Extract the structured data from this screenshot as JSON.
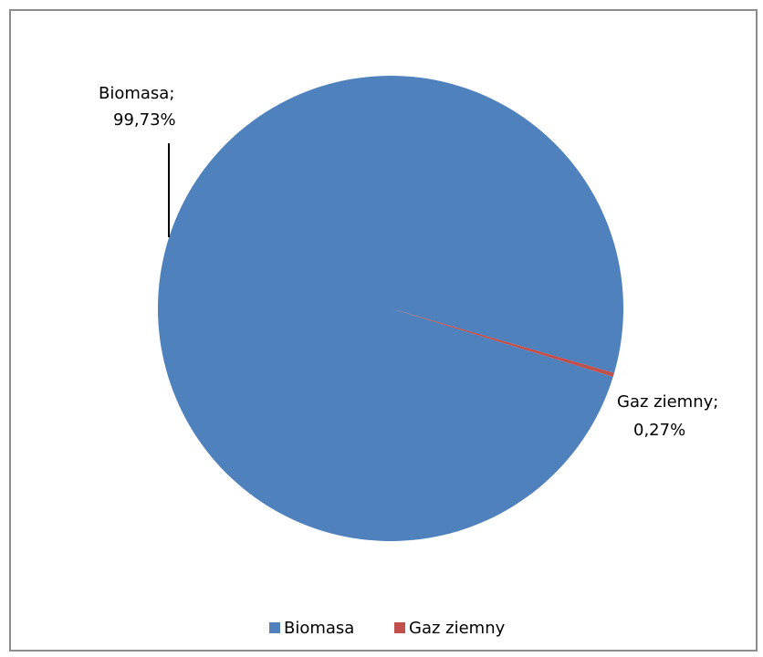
{
  "chart_data": {
    "type": "pie",
    "categories": [
      "Biomasa",
      "Gaz ziemny"
    ],
    "values": [
      99.73,
      0.27
    ],
    "colors": [
      "#4f81bd",
      "#c0504d"
    ],
    "data_labels": [
      {
        "name": "Biomasa;",
        "value": "99,73%"
      },
      {
        "name": "Gaz ziemny;",
        "value": "0,27%"
      }
    ],
    "legend": {
      "position": "bottom",
      "items": [
        {
          "label": "Biomasa",
          "color": "#4f81bd"
        },
        {
          "label": "Gaz ziemny",
          "color": "#c0504d"
        }
      ]
    }
  }
}
